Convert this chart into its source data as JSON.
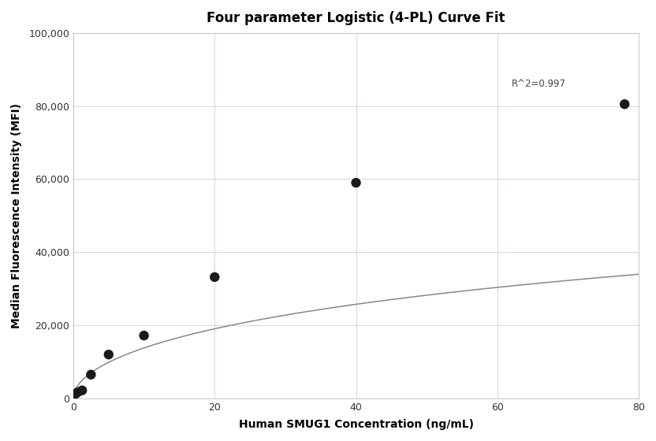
{
  "title": "Four parameter Logistic (4-PL) Curve Fit",
  "xlabel": "Human SMUG1 Concentration (ng/mL)",
  "ylabel": "Median Fluorescence Intensity (MFI)",
  "scatter_x": [
    0.3125,
    0.625,
    1.25,
    2.5,
    5.0,
    10.0,
    20.0,
    40.0,
    78.0
  ],
  "scatter_y": [
    1200,
    1700,
    2200,
    6500,
    12000,
    17200,
    33200,
    59000,
    80500
  ],
  "xlim": [
    0,
    80
  ],
  "ylim": [
    0,
    100000
  ],
  "yticks": [
    0,
    20000,
    40000,
    60000,
    80000,
    100000
  ],
  "xticks": [
    0,
    20,
    40,
    60,
    80
  ],
  "r_squared": "R^2=0.997",
  "r_squared_x": 62,
  "r_squared_y": 86000,
  "curve_color": "#888888",
  "scatter_color": "#1a1a1a",
  "background_color": "#ffffff",
  "grid_color": "#ccd9e8",
  "title_fontsize": 12,
  "label_fontsize": 10,
  "tick_fontsize": 9
}
